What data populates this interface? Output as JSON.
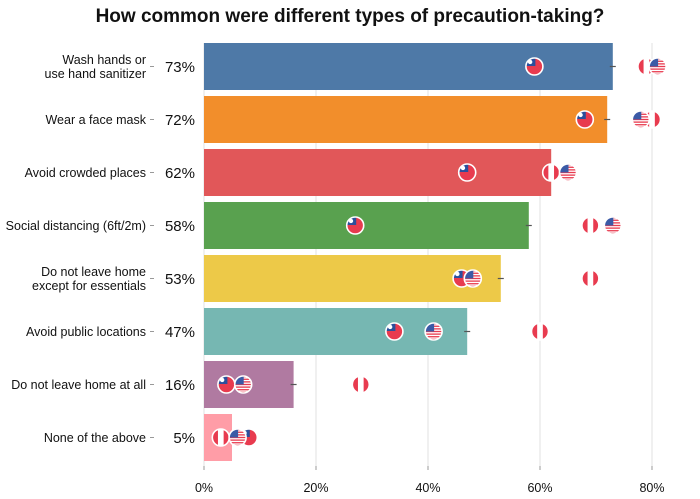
{
  "chart_data": {
    "type": "bar",
    "orientation": "horizontal",
    "title": "How common were different types of precaution-taking?",
    "xlim": [
      0,
      0.8
    ],
    "xticks": [
      0,
      0.2,
      0.4,
      0.6,
      0.8
    ],
    "xtick_labels": [
      "0%",
      "20%",
      "40%",
      "60%",
      "80%"
    ],
    "grid": true,
    "country_markers": [
      "Taiwan",
      "Peru",
      "United States"
    ],
    "categories": [
      {
        "label_lines": [
          "Wash hands or",
          "use hand sanitizer"
        ],
        "value": 0.73,
        "value_label": "73%",
        "color": "#4e79a7",
        "markers": {
          "Taiwan": 0.59,
          "Peru": 0.79,
          "United States": 0.81
        }
      },
      {
        "label_lines": [
          "Wear a face mask"
        ],
        "value": 0.72,
        "value_label": "72%",
        "color": "#f28e2b",
        "markers": {
          "Taiwan": 0.68,
          "Peru": 0.8,
          "United States": 0.78
        }
      },
      {
        "label_lines": [
          "Avoid crowded places"
        ],
        "value": 0.62,
        "value_label": "62%",
        "color": "#e15759",
        "markers": {
          "Taiwan": 0.47,
          "Peru": 0.62,
          "United States": 0.65
        }
      },
      {
        "label_lines": [
          "Social distancing (6ft/2m)"
        ],
        "value": 0.58,
        "value_label": "58%",
        "color": "#59a14f",
        "markers": {
          "Taiwan": 0.27,
          "Peru": 0.69,
          "United States": 0.73
        }
      },
      {
        "label_lines": [
          "Do not leave home",
          "except for essentials"
        ],
        "value": 0.53,
        "value_label": "53%",
        "color": "#edc948",
        "markers": {
          "Taiwan": 0.46,
          "Peru": 0.69,
          "United States": 0.48
        }
      },
      {
        "label_lines": [
          "Avoid public locations"
        ],
        "value": 0.47,
        "value_label": "47%",
        "color": "#76b7b2",
        "markers": {
          "Taiwan": 0.34,
          "Peru": 0.6,
          "United States": 0.41
        }
      },
      {
        "label_lines": [
          "Do not leave home at all"
        ],
        "value": 0.16,
        "value_label": "16%",
        "color": "#b07aa1",
        "markers": {
          "Taiwan": 0.04,
          "Peru": 0.28,
          "United States": 0.07
        }
      },
      {
        "label_lines": [
          "None of the above"
        ],
        "value": 0.05,
        "value_label": "5%",
        "color": "#ff9da7",
        "markers": {
          "Taiwan": 0.08,
          "Peru": 0.03,
          "United States": 0.06
        }
      }
    ]
  }
}
